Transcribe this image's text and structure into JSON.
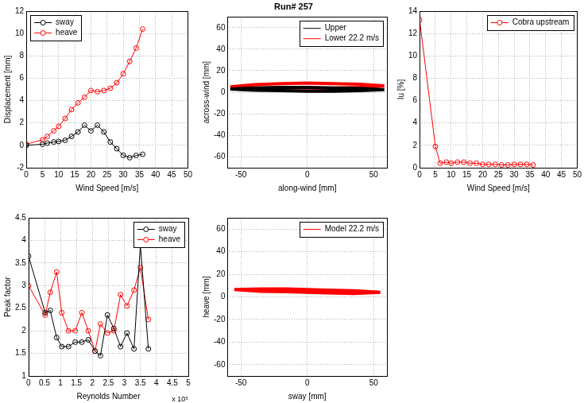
{
  "chart_data": [
    {
      "type": "line",
      "xlabel": "Wind Speed [m/s]",
      "ylabel": "Displacement [mm]",
      "x": [
        0,
        5,
        6.5,
        8.5,
        10,
        12,
        14,
        16,
        18,
        20,
        22,
        24,
        26,
        28,
        30,
        32,
        34,
        36
      ],
      "series": [
        {
          "name": "sway",
          "color": "#000000",
          "marker": "circle",
          "line_style": "solid",
          "values": [
            0,
            0.1,
            0.2,
            0.3,
            0.35,
            0.45,
            0.8,
            1.2,
            1.8,
            1.3,
            1.8,
            1.2,
            0.3,
            -0.3,
            -0.9,
            -1.1,
            -0.9,
            -0.8
          ]
        },
        {
          "name": "heave",
          "color": "#ff0000",
          "marker": "circle",
          "line_style": "solid",
          "values": [
            0.1,
            0.5,
            0.8,
            1.3,
            1.7,
            2.4,
            3.2,
            3.8,
            4.3,
            4.9,
            4.8,
            4.9,
            5.1,
            5.6,
            6.4,
            7.5,
            8.7,
            10.4
          ]
        }
      ],
      "xlim": [
        0,
        50
      ],
      "xticks": [
        0,
        5,
        10,
        15,
        20,
        25,
        30,
        35,
        40,
        45,
        50
      ],
      "ylim": [
        -2,
        12
      ],
      "yticks": [
        -2,
        0,
        2,
        4,
        6,
        8,
        10,
        12
      ],
      "grid": true,
      "legend": "upper left"
    },
    {
      "type": "line",
      "title": "Run# 257",
      "xlabel": "along-wind [mm]",
      "ylabel": "across-wind [mm]",
      "series": [
        {
          "name": "Upper",
          "color": "#000000",
          "marker": "none",
          "line_style": "solid",
          "x": [
            -58,
            -40,
            -20,
            0,
            20,
            40,
            58,
            40,
            20,
            0,
            -20,
            -40,
            -58
          ],
          "values": [
            3,
            4,
            4.5,
            4.5,
            4,
            3.5,
            2.5,
            1.5,
            1,
            1,
            1.5,
            2,
            3
          ]
        },
        {
          "name": "Lower 22.2 m/s",
          "color": "#ff0000",
          "marker": "none",
          "line_style": "solid",
          "x": [
            -58,
            -40,
            -20,
            0,
            20,
            40,
            58,
            40,
            20,
            0,
            -20,
            -40,
            -58
          ],
          "values": [
            5,
            7,
            8,
            8.5,
            8,
            7.5,
            6,
            4.5,
            4,
            4,
            4,
            4,
            5
          ]
        }
      ],
      "xlim": [
        -60,
        60
      ],
      "xticks": [
        -50,
        0,
        50
      ],
      "ylim": [
        -70,
        70
      ],
      "yticks": [
        -60,
        -40,
        -20,
        0,
        20,
        40,
        60
      ],
      "grid": true,
      "legend": "upper right"
    },
    {
      "type": "line",
      "xlabel": "Wind Speed [m/s]",
      "ylabel": "Iu [%]",
      "x": [
        0,
        5,
        6.5,
        8.5,
        10,
        12,
        14,
        16,
        18,
        20,
        22,
        24,
        26,
        28,
        30,
        32,
        34,
        36
      ],
      "series": [
        {
          "name": "Cobra upstream",
          "color": "#ff0000",
          "marker": "circle",
          "line_style": "solid",
          "values": [
            13.2,
            1.9,
            0.4,
            0.5,
            0.4,
            0.5,
            0.5,
            0.4,
            0.4,
            0.3,
            0.3,
            0.3,
            0.25,
            0.25,
            0.3,
            0.3,
            0.3,
            0.25
          ]
        }
      ],
      "xlim": [
        0,
        50
      ],
      "xticks": [
        0,
        5,
        10,
        15,
        20,
        25,
        30,
        35,
        40,
        45,
        50
      ],
      "ylim": [
        0,
        14
      ],
      "yticks": [
        0,
        2,
        4,
        6,
        8,
        10,
        12,
        14
      ],
      "grid": true,
      "legend": "upper right"
    },
    {
      "type": "line",
      "xlabel": "Reynolds Number",
      "ylabel": "Peak factor",
      "annotation": "x 10⁵",
      "x": [
        0,
        0.52,
        0.68,
        0.88,
        1.04,
        1.25,
        1.46,
        1.67,
        1.87,
        2.08,
        2.25,
        2.47,
        2.67,
        2.88,
        3.08,
        3.3,
        3.5,
        3.75
      ],
      "series": [
        {
          "name": "sway",
          "color": "#000000",
          "marker": "circle",
          "line_style": "solid",
          "values": [
            3.65,
            2.4,
            2.45,
            1.85,
            1.65,
            1.65,
            1.75,
            1.75,
            1.8,
            1.55,
            1.45,
            2.35,
            2.05,
            1.65,
            1.95,
            1.6,
            3.9,
            1.6
          ]
        },
        {
          "name": "heave",
          "color": "#ff0000",
          "marker": "circle",
          "line_style": "solid",
          "values": [
            3.0,
            2.35,
            2.85,
            3.3,
            2.4,
            2.0,
            2.0,
            2.4,
            2.0,
            1.55,
            2.15,
            1.95,
            2.0,
            2.8,
            2.55,
            2.9,
            3.4,
            2.25
          ]
        }
      ],
      "xlim": [
        0,
        5
      ],
      "xticks": [
        0,
        0.5,
        1,
        1.5,
        2,
        2.5,
        3,
        3.5,
        4,
        4.5,
        5
      ],
      "ylim": [
        1,
        4.5
      ],
      "yticks": [
        1,
        1.5,
        2,
        2.5,
        3,
        3.5,
        4,
        4.5
      ],
      "grid": true,
      "legend": "upper right"
    },
    {
      "type": "line",
      "xlabel": "sway [mm]",
      "ylabel": "heave [mm]",
      "series": [
        {
          "name": "Model 22.2 m/s",
          "color": "#ff0000",
          "marker": "none",
          "line_style": "solid",
          "x": [
            -55,
            -35,
            -15,
            0,
            15,
            35,
            55,
            35,
            15,
            0,
            -15,
            -35,
            -55
          ],
          "values": [
            6.5,
            7,
            7,
            6.5,
            6,
            5.5,
            4,
            3,
            3.5,
            4,
            4.5,
            5,
            6.5
          ]
        }
      ],
      "xlim": [
        -60,
        60
      ],
      "xticks": [
        -50,
        0,
        50
      ],
      "ylim": [
        -70,
        70
      ],
      "yticks": [
        -60,
        -40,
        -20,
        0,
        20,
        40,
        60
      ],
      "grid": true,
      "legend": "upper right"
    }
  ]
}
